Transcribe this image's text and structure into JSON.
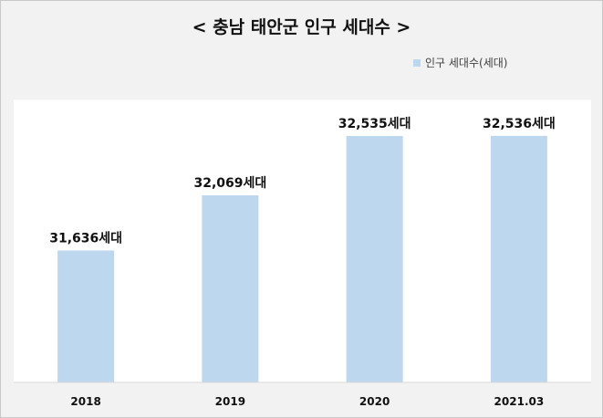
{
  "chart_data": {
    "type": "bar",
    "title": "< 충남 태안군 인구 세대수 >",
    "categories": [
      "2018",
      "2019",
      "2020",
      "2021.03"
    ],
    "series": [
      {
        "name": "인구 세대수(세대)",
        "values": [
          31636,
          32069,
          32535,
          32536
        ],
        "color": "#bdd7ee"
      }
    ],
    "data_labels": [
      "31,636세대",
      "32,069세대",
      "32,535세대",
      "32,536세대"
    ],
    "ylim": [
      30600,
      32700
    ],
    "grid": false,
    "legend_position": "top-right"
  }
}
